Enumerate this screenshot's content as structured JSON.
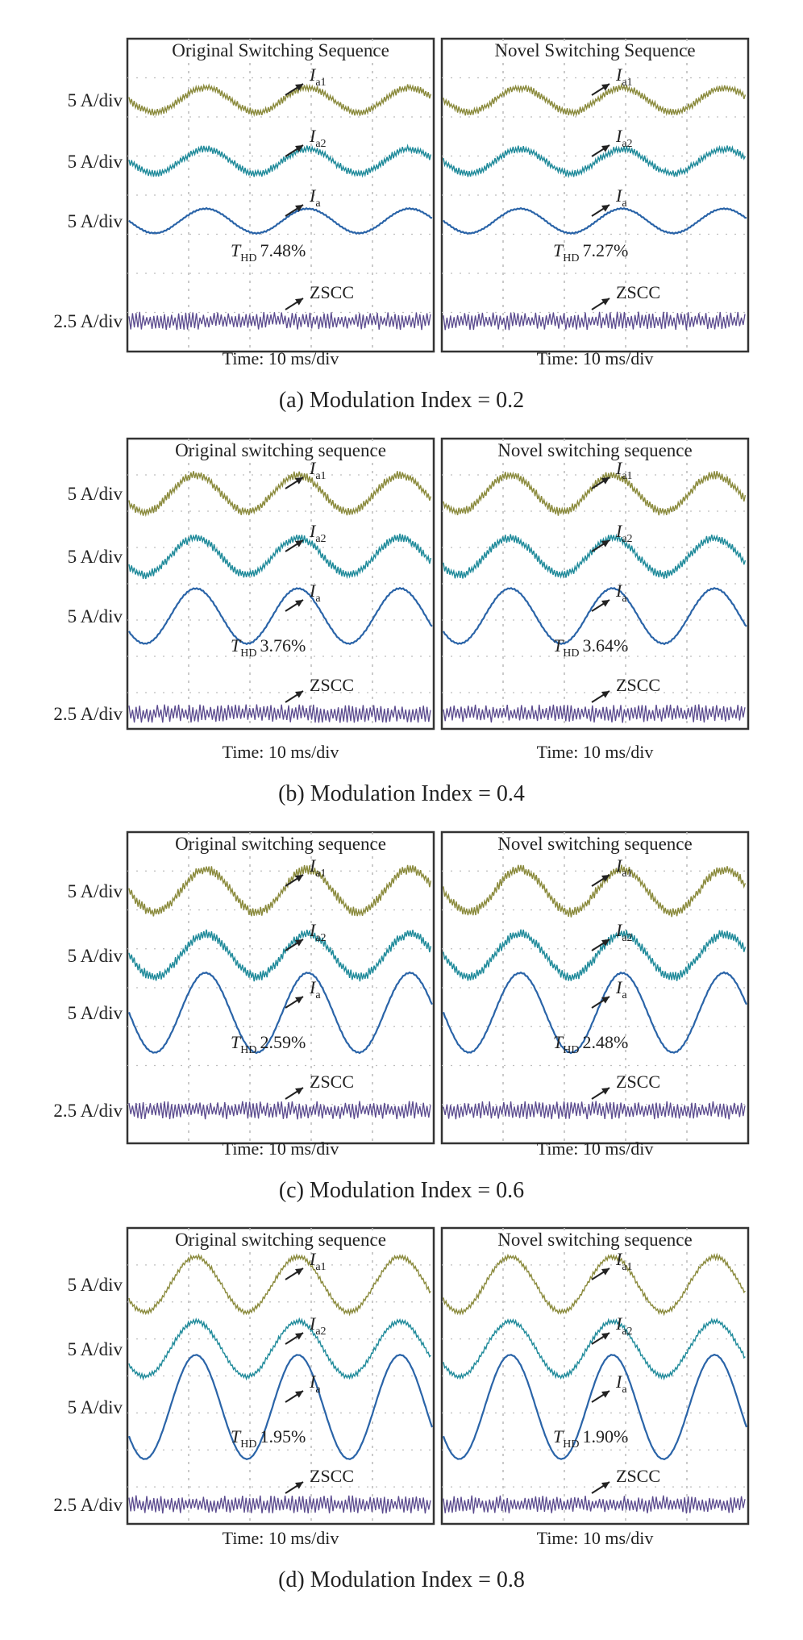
{
  "figure": {
    "units": [
      "5 A/div",
      "5 A/div",
      "5 A/div",
      "2.5 A/div"
    ],
    "time_label": "Time: 10 ms/div",
    "trace_labels": {
      "ia1": {
        "main": "I",
        "sub": "a1"
      },
      "ia2": {
        "main": "I",
        "sub": "a2"
      },
      "ia": {
        "main": "I",
        "sub": "a"
      },
      "zscc": "ZSCC"
    },
    "thd_prefix": {
      "main": "T",
      "sub": "HD"
    },
    "colors": {
      "ia1": "#8a8a3c",
      "ia2": "#1f8a9a",
      "ia": "#2a64a8",
      "zscc": "#5a4a8e",
      "frame": "#333333",
      "grid": "#bdbdbd"
    }
  },
  "chart_data": [
    {
      "type": "line",
      "caption": "(a) Modulation Index = 0.2",
      "modulation_index": 0.2,
      "x_label": "Time: 10 ms/div",
      "panels": [
        {
          "title": "Original Switching Sequence",
          "thd": "7.48%",
          "thd_value_percent": 7.48
        },
        {
          "title": "Novel Switching Sequence",
          "thd": "7.27%",
          "thd_value_percent": 7.27
        }
      ],
      "series": [
        {
          "name": "Ia1",
          "scale": "5 A/div",
          "fundamental_amplitude_div": 0.2,
          "ripple_div": 0.12
        },
        {
          "name": "Ia2",
          "scale": "5 A/div",
          "fundamental_amplitude_div": 0.2,
          "ripple_div": 0.12
        },
        {
          "name": "Ia",
          "scale": "5 A/div",
          "fundamental_amplitude_div": 0.2,
          "ripple_div": 0.02
        },
        {
          "name": "ZSCC",
          "scale": "2.5 A/div",
          "fundamental_amplitude_div": 0,
          "ripple_div": 0.3
        }
      ],
      "fundamental_periods_per_panel": 3
    },
    {
      "type": "line",
      "caption": "(b) Modulation Index = 0.4",
      "modulation_index": 0.4,
      "x_label": "Time: 10 ms/div",
      "panels": [
        {
          "title": "Original switching sequence",
          "thd": "3.76%",
          "thd_value_percent": 3.76
        },
        {
          "title": "Novel switching sequence",
          "thd": "3.64%",
          "thd_value_percent": 3.64
        }
      ],
      "series": [
        {
          "name": "Ia1",
          "scale": "5 A/div",
          "fundamental_amplitude_div": 0.3,
          "ripple_div": 0.14
        },
        {
          "name": "Ia2",
          "scale": "5 A/div",
          "fundamental_amplitude_div": 0.3,
          "ripple_div": 0.14
        },
        {
          "name": "Ia",
          "scale": "5 A/div",
          "fundamental_amplitude_div": 0.45,
          "ripple_div": 0.02
        },
        {
          "name": "ZSCC",
          "scale": "2.5 A/div",
          "fundamental_amplitude_div": 0,
          "ripple_div": 0.3
        }
      ],
      "fundamental_periods_per_panel": 3
    },
    {
      "type": "line",
      "caption": "(c) Modulation Index = 0.6",
      "modulation_index": 0.6,
      "x_label": "Time: 10 ms/div",
      "panels": [
        {
          "title": "Original switching sequence",
          "thd": "2.59%",
          "thd_value_percent": 2.59
        },
        {
          "title": "Novel switching sequence",
          "thd": "2.48%",
          "thd_value_percent": 2.48
        }
      ],
      "series": [
        {
          "name": "Ia1",
          "scale": "5 A/div",
          "fundamental_amplitude_div": 0.35,
          "ripple_div": 0.16
        },
        {
          "name": "Ia2",
          "scale": "5 A/div",
          "fundamental_amplitude_div": 0.35,
          "ripple_div": 0.16
        },
        {
          "name": "Ia",
          "scale": "5 A/div",
          "fundamental_amplitude_div": 0.65,
          "ripple_div": 0.02
        },
        {
          "name": "ZSCC",
          "scale": "2.5 A/div",
          "fundamental_amplitude_div": 0,
          "ripple_div": 0.3
        }
      ],
      "fundamental_periods_per_panel": 3
    },
    {
      "type": "line",
      "caption": "(d) Modulation Index = 0.8",
      "modulation_index": 0.8,
      "x_label": "Time: 10 ms/div",
      "panels": [
        {
          "title": "Original switching sequence",
          "thd": "1.95%",
          "thd_value_percent": 1.95
        },
        {
          "title": "Novel switching sequence",
          "thd": "1.90%",
          "thd_value_percent": 1.9
        }
      ],
      "series": [
        {
          "name": "Ia1",
          "scale": "5 A/div",
          "fundamental_amplitude_div": 0.45,
          "ripple_div": 0.08
        },
        {
          "name": "Ia2",
          "scale": "5 A/div",
          "fundamental_amplitude_div": 0.45,
          "ripple_div": 0.08
        },
        {
          "name": "Ia",
          "scale": "5 A/div",
          "fundamental_amplitude_div": 0.85,
          "ripple_div": 0.01
        },
        {
          "name": "ZSCC",
          "scale": "2.5 A/div",
          "fundamental_amplitude_div": 0,
          "ripple_div": 0.3
        }
      ],
      "fundamental_periods_per_panel": 3
    }
  ]
}
